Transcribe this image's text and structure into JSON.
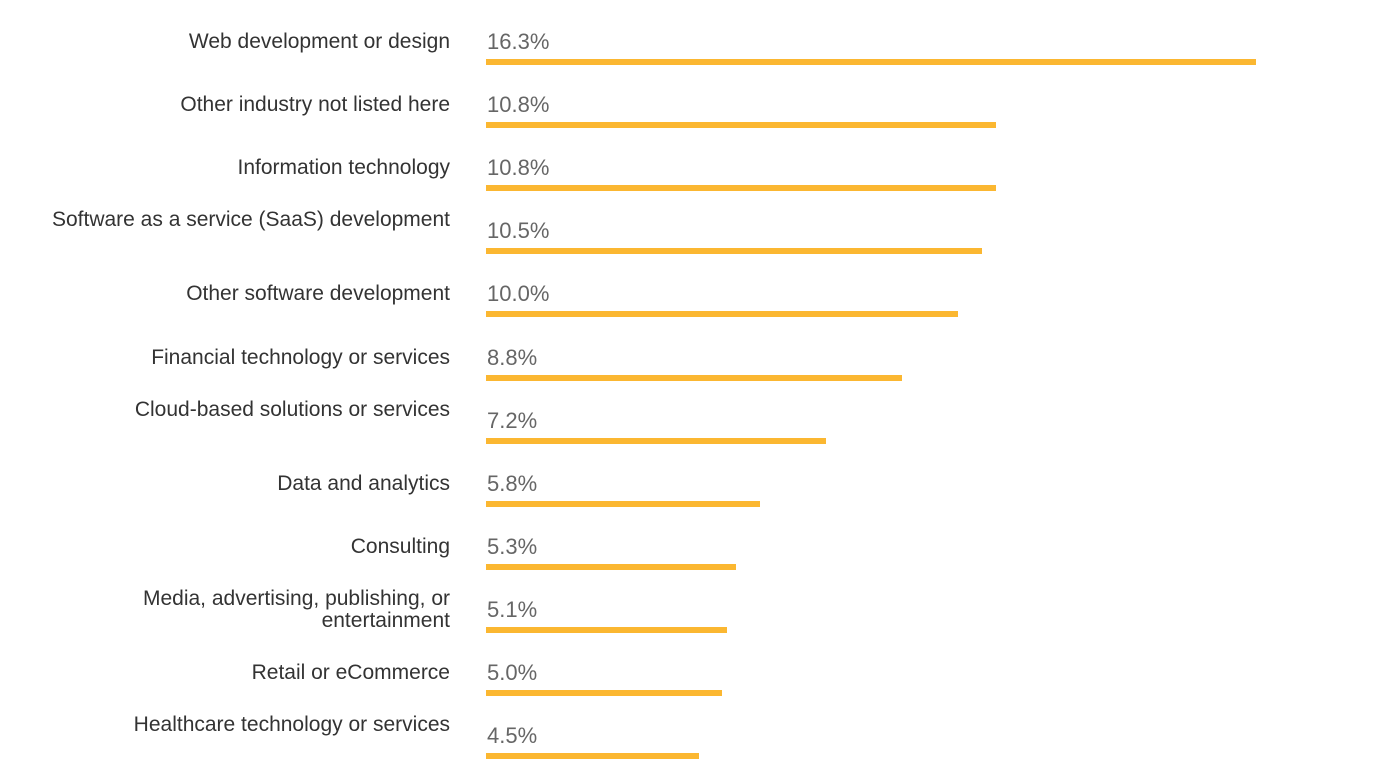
{
  "chart_data": {
    "type": "bar",
    "orientation": "horizontal",
    "categories": [
      "Web development or design",
      "Other industry not listed here",
      "Information technology",
      "Software as a service (SaaS) development",
      "Other software development",
      "Financial technology or services",
      "Cloud-based solutions or services",
      "Data and analytics",
      "Consulting",
      "Media, advertising, publishing, or entertainment",
      "Retail or eCommerce",
      "Healthcare technology or services"
    ],
    "values": [
      16.3,
      10.8,
      10.8,
      10.5,
      10.0,
      8.8,
      7.2,
      5.8,
      5.3,
      5.1,
      5.0,
      4.5
    ],
    "value_labels": [
      "16.3%",
      "10.8%",
      "10.8%",
      "10.5%",
      "10.0%",
      "8.8%",
      "7.2%",
      "5.8%",
      "5.3%",
      "5.1%",
      "5.0%",
      "4.5%"
    ],
    "unit": "%",
    "title": "",
    "xlabel": "",
    "ylabel": "",
    "grid": false,
    "legend": false,
    "colors": {
      "bar": "#FBB731",
      "category_text": "#333333",
      "value_text": "#666666"
    }
  }
}
